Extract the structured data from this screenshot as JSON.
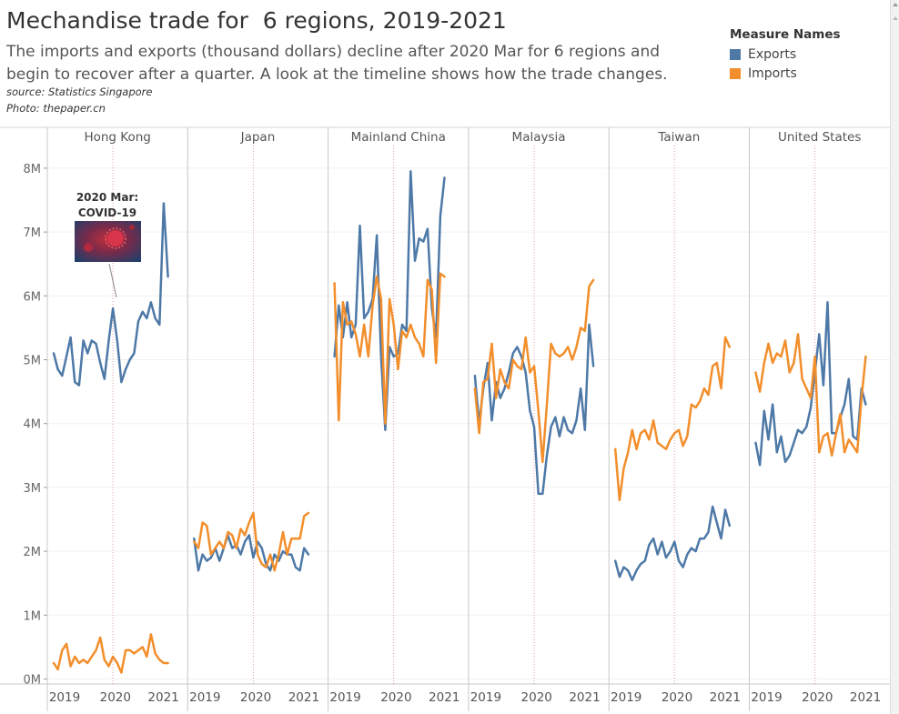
{
  "header": {
    "title": "Mechandise trade for  6 regions, 2019-2021",
    "subtitle": "The imports and exports (thousand dollars) decline after 2020 Mar for 6 regions and begin to recover after a quarter. A look at the timeline shows how the trade changes.",
    "source": "source: Statistics Singapore",
    "photo": "Photo: thepaper.cn"
  },
  "legend": {
    "title": "Measure Names",
    "items": [
      {
        "label": "Exports",
        "color": "#4e79a7"
      },
      {
        "label": "Imports",
        "color": "#f28e2b"
      }
    ]
  },
  "annotation": {
    "text_line1": "2020 Mar:",
    "text_line2": "COVID-19",
    "image": "covid-virus-photo"
  },
  "chart_data": {
    "type": "line",
    "x_axis_ticks": [
      "2019",
      "2020",
      "2021"
    ],
    "y_axis_ticks": [
      "0M",
      "1M",
      "2M",
      "3M",
      "4M",
      "5M",
      "6M",
      "7M",
      "8M"
    ],
    "ylim": [
      0,
      8300000
    ],
    "reference_line": "2020 Mar",
    "months_per_panel": 30,
    "panels": [
      {
        "region": "Hong Kong",
        "series": [
          {
            "name": "Exports",
            "values": [
              5100000,
              4850000,
              4750000,
              5050000,
              5350000,
              4650000,
              4600000,
              5300000,
              5100000,
              5300000,
              5250000,
              4950000,
              4700000,
              5300000,
              5800000,
              5300000,
              4650000,
              4850000,
              5000000,
              5100000,
              5600000,
              5750000,
              5650000,
              5900000,
              5650000,
              5550000,
              7450000,
              6300000
            ]
          },
          {
            "name": "Imports",
            "values": [
              250000,
              150000,
              450000,
              550000,
              200000,
              350000,
              250000,
              300000,
              250000,
              350000,
              450000,
              650000,
              300000,
              200000,
              350000,
              250000,
              100000,
              450000,
              450000,
              400000,
              450000,
              500000,
              350000,
              700000,
              400000,
              300000,
              250000,
              250000
            ]
          }
        ]
      },
      {
        "region": "Japan",
        "series": [
          {
            "name": "Exports",
            "values": [
              2200000,
              1700000,
              1950000,
              1850000,
              1900000,
              2050000,
              1850000,
              2050000,
              2250000,
              2050000,
              2100000,
              1950000,
              2150000,
              2250000,
              1900000,
              2150000,
              2050000,
              1800000,
              1700000,
              1950000,
              1850000,
              2000000,
              1950000,
              1950000,
              1750000,
              1700000,
              2050000,
              1950000
            ]
          },
          {
            "name": "Imports",
            "values": [
              2150000,
              2050000,
              2450000,
              2400000,
              1950000,
              2050000,
              2150000,
              2050000,
              2300000,
              2250000,
              2050000,
              2350000,
              2250000,
              2450000,
              2600000,
              1950000,
              1800000,
              1750000,
              1950000,
              1700000,
              1950000,
              2300000,
              1950000,
              2200000,
              2200000,
              2200000,
              2550000,
              2600000
            ]
          }
        ]
      },
      {
        "region": "Mainland China",
        "series": [
          {
            "name": "Exports",
            "values": [
              5050000,
              5850000,
              5350000,
              5900000,
              5350000,
              5550000,
              7100000,
              5650000,
              5750000,
              5950000,
              6950000,
              5050000,
              3900000,
              5200000,
              5050000,
              5100000,
              5550000,
              5450000,
              7950000,
              6550000,
              6900000,
              6850000,
              7050000,
              5800000,
              5350000,
              7250000,
              7850000
            ]
          },
          {
            "name": "Imports",
            "values": [
              6200000,
              4050000,
              5900000,
              5550000,
              5600000,
              5400000,
              5050000,
              5550000,
              5050000,
              5850000,
              6300000,
              5950000,
              4000000,
              5950000,
              5550000,
              4850000,
              5450000,
              5350000,
              5550000,
              5350000,
              5250000,
              5050000,
              6250000,
              6100000,
              4950000,
              6350000,
              6300000
            ]
          }
        ]
      },
      {
        "region": "Malaysia",
        "series": [
          {
            "name": "Exports",
            "values": [
              4750000,
              4000000,
              4550000,
              4950000,
              4050000,
              4650000,
              4400000,
              4550000,
              4800000,
              5100000,
              5200000,
              5050000,
              4800000,
              4200000,
              3950000,
              2900000,
              2900000,
              3500000,
              3950000,
              4100000,
              3800000,
              4100000,
              3900000,
              3850000,
              4050000,
              4550000,
              3900000,
              5550000,
              4900000
            ]
          },
          {
            "name": "Imports",
            "values": [
              4550000,
              3850000,
              4650000,
              4700000,
              5250000,
              4400000,
              4850000,
              4650000,
              4550000,
              5000000,
              4900000,
              4850000,
              5350000,
              4800000,
              4900000,
              4200000,
              3400000,
              4300000,
              5250000,
              5100000,
              5050000,
              5100000,
              5200000,
              5000000,
              5200000,
              5500000,
              5450000,
              6150000,
              6250000
            ]
          }
        ]
      },
      {
        "region": "Taiwan",
        "series": [
          {
            "name": "Exports",
            "values": [
              1850000,
              1600000,
              1750000,
              1700000,
              1550000,
              1700000,
              1800000,
              1850000,
              2100000,
              2200000,
              1950000,
              2150000,
              1900000,
              2000000,
              2150000,
              1850000,
              1750000,
              1950000,
              2050000,
              2000000,
              2200000,
              2200000,
              2300000,
              2700000,
              2450000,
              2200000,
              2650000,
              2400000
            ]
          },
          {
            "name": "Imports",
            "values": [
              3600000,
              2800000,
              3300000,
              3550000,
              3900000,
              3600000,
              3850000,
              3900000,
              3750000,
              4050000,
              3700000,
              3650000,
              3600000,
              3750000,
              3850000,
              3900000,
              3650000,
              3800000,
              4300000,
              4250000,
              4350000,
              4550000,
              4450000,
              4900000,
              4950000,
              4550000,
              5350000,
              5200000
            ]
          }
        ]
      },
      {
        "region": "United States",
        "series": [
          {
            "name": "Exports",
            "values": [
              3700000,
              3350000,
              4200000,
              3750000,
              4300000,
              3550000,
              3800000,
              3400000,
              3500000,
              3700000,
              3900000,
              3850000,
              3950000,
              4250000,
              4800000,
              5400000,
              4600000,
              5900000,
              3850000,
              3850000,
              4100000,
              4300000,
              4700000,
              3800000,
              3750000,
              4550000,
              4300000
            ]
          },
          {
            "name": "Imports",
            "values": [
              4800000,
              4500000,
              4950000,
              5250000,
              4950000,
              5100000,
              5050000,
              5300000,
              4800000,
              4950000,
              5400000,
              4700000,
              4550000,
              4400000,
              5050000,
              3550000,
              3800000,
              3850000,
              3500000,
              3850000,
              4150000,
              3550000,
              3750000,
              3650000,
              3550000,
              4400000,
              5050000
            ]
          }
        ]
      }
    ]
  }
}
